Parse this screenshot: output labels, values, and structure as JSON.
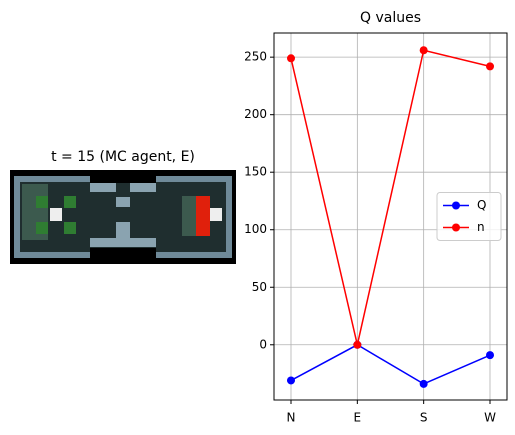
{
  "chart_data": [
    {
      "type": "image",
      "title": "t = 15 (MC agent, E)"
    },
    {
      "type": "line",
      "title": "Q values",
      "categories": [
        "N",
        "E",
        "S",
        "W"
      ],
      "series": [
        {
          "name": "Q",
          "color": "#0000ff",
          "values": [
            -31,
            0,
            -34,
            -9
          ]
        },
        {
          "name": "n",
          "color": "#ff0000",
          "values": [
            249,
            0,
            256,
            242
          ]
        }
      ],
      "ylim": [
        -48,
        271
      ],
      "yticks": [
        0,
        50,
        100,
        150,
        200,
        250
      ],
      "grid": true,
      "legend": "center right"
    }
  ]
}
